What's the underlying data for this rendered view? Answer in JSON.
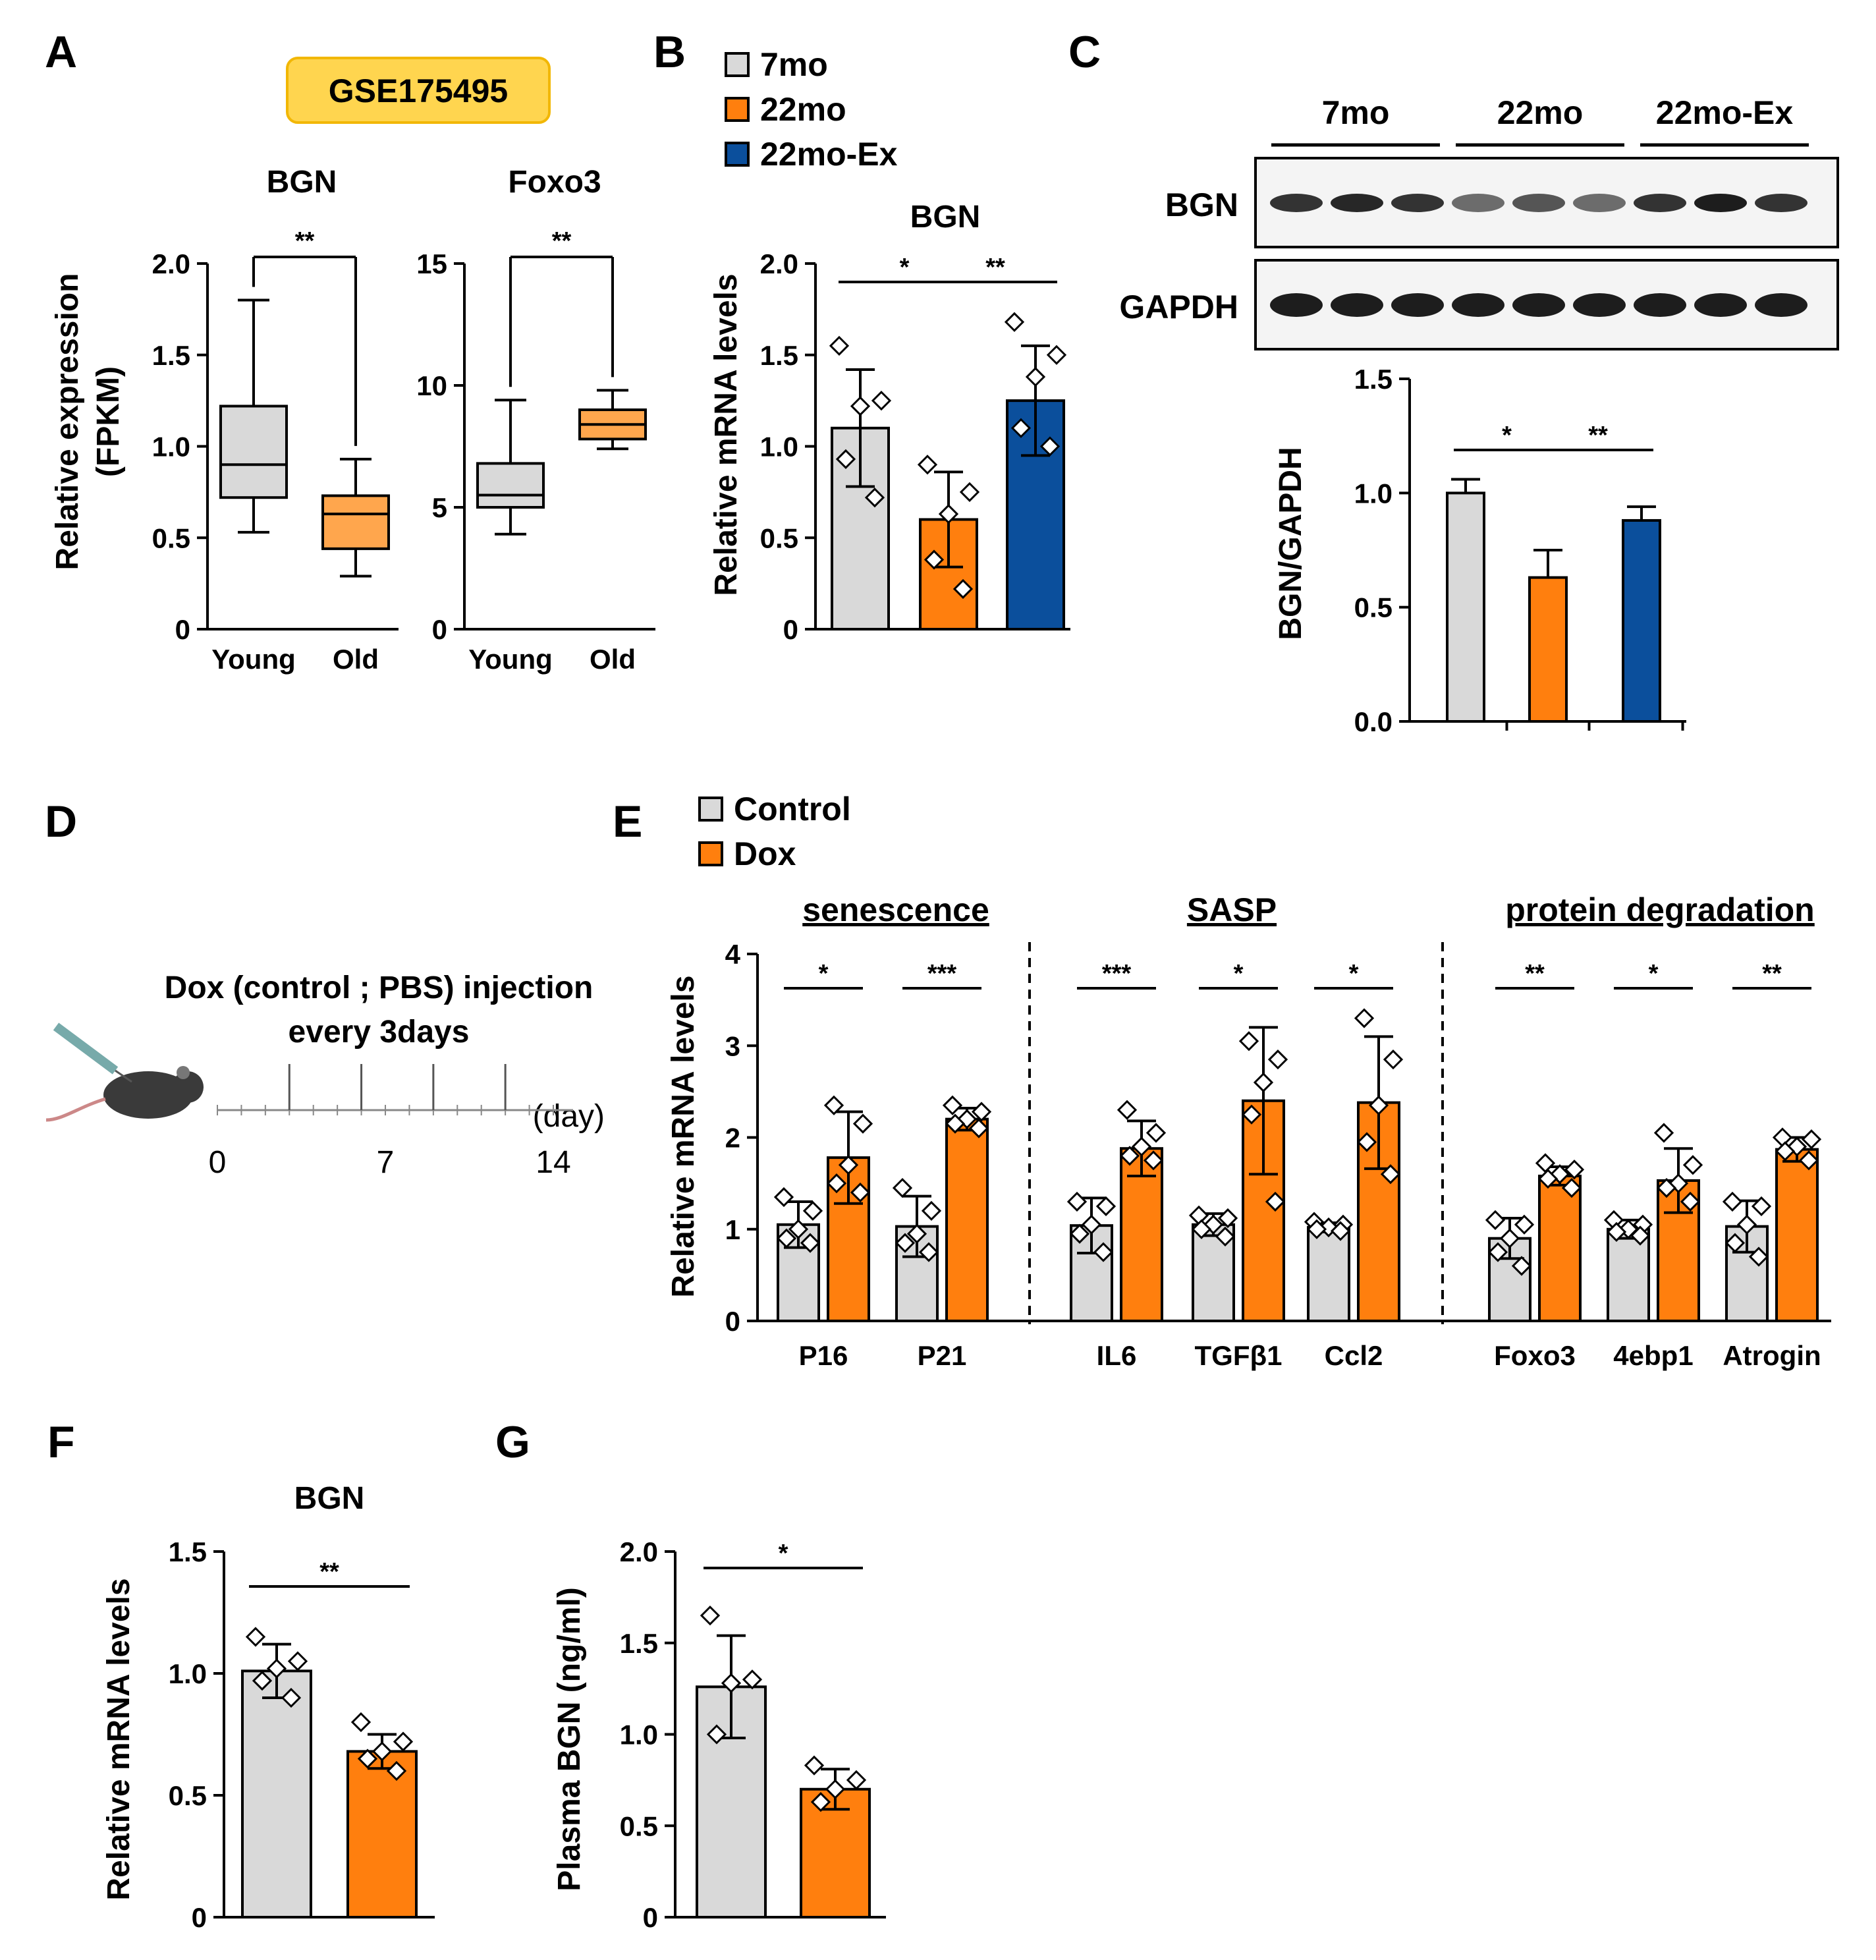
{
  "colors": {
    "grey": "#d9d9d9",
    "orange": "#ff7f0e",
    "orange_box": "#ffa64d",
    "blue": "#0b4f9c",
    "badge_fill": "#ffd54f",
    "badge_stroke": "#f2b705"
  },
  "panels": {
    "A": "A",
    "B": "B",
    "C": "C",
    "D": "D",
    "E": "E",
    "F": "F",
    "G": "G"
  },
  "badge": "GSE175495",
  "legend_B": [
    {
      "label": "7mo",
      "color": "grey"
    },
    {
      "label": "22mo",
      "color": "orange"
    },
    {
      "label": "22mo-Ex",
      "color": "blue"
    }
  ],
  "legend_E": [
    {
      "label": "Control",
      "color": "grey"
    },
    {
      "label": "Dox",
      "color": "orange"
    }
  ],
  "timeline": {
    "line1": "Dox (control ; PBS) injection",
    "line2": "every 3days",
    "ticks": [
      "0",
      "7",
      "14"
    ],
    "unit": "(day)"
  },
  "chart_data": [
    {
      "id": "A1",
      "type": "box",
      "title": "BGN",
      "ylabel": "Relative expression",
      "ylabel2": "(FPKM)",
      "yticks": [
        "0",
        "0.5",
        "1.0",
        "1.5",
        "2.0"
      ],
      "ylim": [
        0,
        2.0
      ],
      "categories": [
        "Young",
        "Old"
      ],
      "boxes": [
        {
          "min": 0.53,
          "q1": 0.72,
          "median": 0.9,
          "q3": 1.22,
          "max": 1.8,
          "color": "grey"
        },
        {
          "min": 0.29,
          "q1": 0.44,
          "median": 0.63,
          "q3": 0.73,
          "max": 0.93,
          "color": "orange_box"
        }
      ],
      "sig": [
        {
          "from": 0,
          "to": 1,
          "label": "**"
        }
      ]
    },
    {
      "id": "A2",
      "type": "box",
      "title": "Foxo3",
      "yticks": [
        "0",
        "5",
        "10",
        "15"
      ],
      "ylim": [
        0,
        15
      ],
      "categories": [
        "Young",
        "Old"
      ],
      "boxes": [
        {
          "min": 3.9,
          "q1": 5.0,
          "median": 5.5,
          "q3": 6.8,
          "max": 9.4,
          "color": "grey"
        },
        {
          "min": 7.4,
          "q1": 7.8,
          "median": 8.4,
          "q3": 9.0,
          "max": 9.8,
          "color": "orange_box"
        }
      ],
      "sig": [
        {
          "from": 0,
          "to": 1,
          "label": "**"
        }
      ]
    },
    {
      "id": "B",
      "type": "bar",
      "title": "BGN",
      "ylabel": "Relative mRNA levels",
      "yticks": [
        "0",
        "0.5",
        "1.0",
        "1.5",
        "2.0"
      ],
      "ylim": [
        0,
        2.0
      ],
      "bars": [
        {
          "value": 1.1,
          "err": 0.32,
          "color": "grey",
          "points": [
            1.55,
            1.25,
            1.22,
            0.93,
            0.72
          ]
        },
        {
          "value": 0.6,
          "err": 0.26,
          "color": "orange",
          "points": [
            0.9,
            0.75,
            0.63,
            0.38,
            0.22
          ]
        },
        {
          "value": 1.25,
          "err": 0.3,
          "color": "blue",
          "points": [
            1.68,
            1.5,
            1.38,
            1.1,
            1.0
          ]
        }
      ],
      "sig": [
        {
          "from": 0,
          "to": 1,
          "label": "*"
        },
        {
          "from": 1,
          "to": 2,
          "label": "**"
        }
      ]
    },
    {
      "id": "C",
      "type": "bar",
      "ylabel": "BGN/GAPDH",
      "yticks": [
        "0.0",
        "0.5",
        "1.0",
        "1.5"
      ],
      "ylim": [
        0,
        1.5
      ],
      "blot": {
        "rows": [
          "BGN",
          "GAPDH"
        ],
        "groups": [
          "7mo",
          "22mo",
          "22mo-Ex"
        ],
        "bgn_intensity": [
          0.85,
          0.9,
          0.85,
          0.6,
          0.7,
          0.6,
          0.85,
          0.95,
          0.85
        ]
      },
      "bars": [
        {
          "value": 1.0,
          "err": 0.06,
          "color": "grey"
        },
        {
          "value": 0.63,
          "err": 0.12,
          "color": "orange"
        },
        {
          "value": 0.88,
          "err": 0.06,
          "color": "blue"
        }
      ],
      "sig": [
        {
          "from": 0,
          "to": 1,
          "label": "*"
        },
        {
          "from": 1,
          "to": 2,
          "label": "**"
        }
      ]
    },
    {
      "id": "E",
      "type": "bar",
      "ylabel": "Relative mRNA levels",
      "yticks": [
        "0",
        "1",
        "2",
        "3",
        "4"
      ],
      "ylim": [
        0,
        4
      ],
      "groups": [
        "senescence",
        "SASP",
        "protein degradation"
      ],
      "genes": [
        {
          "name": "P16",
          "group": 0,
          "sig": "*",
          "control": {
            "value": 1.05,
            "err": 0.25,
            "points": [
              1.35,
              1.2,
              1.0,
              0.9,
              0.85
            ]
          },
          "dox": {
            "value": 1.78,
            "err": 0.5,
            "points": [
              2.35,
              2.15,
              1.7,
              1.5,
              1.4
            ]
          }
        },
        {
          "name": "P21",
          "group": 0,
          "sig": "***",
          "control": {
            "value": 1.03,
            "err": 0.33,
            "points": [
              1.45,
              1.2,
              0.95,
              0.85,
              0.75
            ]
          },
          "dox": {
            "value": 2.2,
            "err": 0.12,
            "points": [
              2.35,
              2.28,
              2.2,
              2.15,
              2.1
            ]
          }
        },
        {
          "name": "IL6",
          "group": 1,
          "sig": "***",
          "control": {
            "value": 1.04,
            "err": 0.3,
            "points": [
              1.3,
              1.25,
              1.05,
              0.95,
              0.75
            ]
          },
          "dox": {
            "value": 1.88,
            "err": 0.3,
            "points": [
              2.3,
              2.05,
              1.9,
              1.8,
              1.75
            ]
          }
        },
        {
          "name": "TGFβ1",
          "group": 1,
          "sig": "*",
          "control": {
            "value": 1.05,
            "err": 0.12,
            "points": [
              1.15,
              1.12,
              1.05,
              1.0,
              0.92
            ]
          },
          "dox": {
            "value": 2.4,
            "err": 0.8,
            "points": [
              3.05,
              2.85,
              2.6,
              2.25,
              1.3
            ]
          }
        },
        {
          "name": "Ccl2",
          "group": 1,
          "sig": "*",
          "control": {
            "value": 1.02,
            "err": 0.05,
            "points": [
              1.08,
              1.05,
              1.02,
              1.0,
              0.98
            ]
          },
          "dox": {
            "value": 2.38,
            "err": 0.72,
            "points": [
              3.3,
              2.85,
              2.35,
              1.95,
              1.6
            ]
          }
        },
        {
          "name": "Foxo3",
          "group": 2,
          "sig": "**",
          "control": {
            "value": 0.9,
            "err": 0.22,
            "points": [
              1.1,
              1.05,
              0.9,
              0.75,
              0.6
            ]
          },
          "dox": {
            "value": 1.58,
            "err": 0.1,
            "points": [
              1.72,
              1.65,
              1.6,
              1.55,
              1.45
            ]
          }
        },
        {
          "name": "4ebp1",
          "group": 2,
          "sig": "*",
          "control": {
            "value": 1.0,
            "err": 0.1,
            "points": [
              1.1,
              1.05,
              1.0,
              0.97,
              0.93
            ]
          },
          "dox": {
            "value": 1.53,
            "err": 0.35,
            "points": [
              2.05,
              1.7,
              1.5,
              1.45,
              1.3
            ]
          }
        },
        {
          "name": "Atrogin",
          "group": 2,
          "sig": "**",
          "control": {
            "value": 1.03,
            "err": 0.28,
            "points": [
              1.3,
              1.25,
              1.05,
              0.85,
              0.7
            ]
          },
          "dox": {
            "value": 1.87,
            "err": 0.13,
            "points": [
              2.0,
              1.98,
              1.9,
              1.85,
              1.75
            ]
          }
        }
      ]
    },
    {
      "id": "F",
      "type": "bar",
      "title": "BGN",
      "ylabel": "Relative mRNA levels",
      "yticks": [
        "0",
        "0.5",
        "1.0",
        "1.5"
      ],
      "ylim": [
        0,
        1.5
      ],
      "bars": [
        {
          "value": 1.01,
          "err": 0.11,
          "color": "grey",
          "points": [
            1.15,
            1.05,
            1.02,
            0.97,
            0.9
          ]
        },
        {
          "value": 0.68,
          "err": 0.07,
          "color": "orange",
          "points": [
            0.8,
            0.72,
            0.68,
            0.65,
            0.6
          ]
        }
      ],
      "sig": [
        {
          "from": 0,
          "to": 1,
          "label": "**"
        }
      ]
    },
    {
      "id": "G",
      "type": "bar",
      "ylabel": "Plasma BGN (ng/ml)",
      "yticks": [
        "0",
        "0.5",
        "1.0",
        "1.5",
        "2.0"
      ],
      "ylim": [
        0,
        2.0
      ],
      "bars": [
        {
          "value": 1.26,
          "err": 0.28,
          "color": "grey",
          "points": [
            1.65,
            1.3,
            1.28,
            1.0
          ]
        },
        {
          "value": 0.7,
          "err": 0.11,
          "color": "orange",
          "points": [
            0.83,
            0.75,
            0.7,
            0.63
          ]
        }
      ],
      "sig": [
        {
          "from": 0,
          "to": 1,
          "label": "*"
        }
      ]
    }
  ]
}
